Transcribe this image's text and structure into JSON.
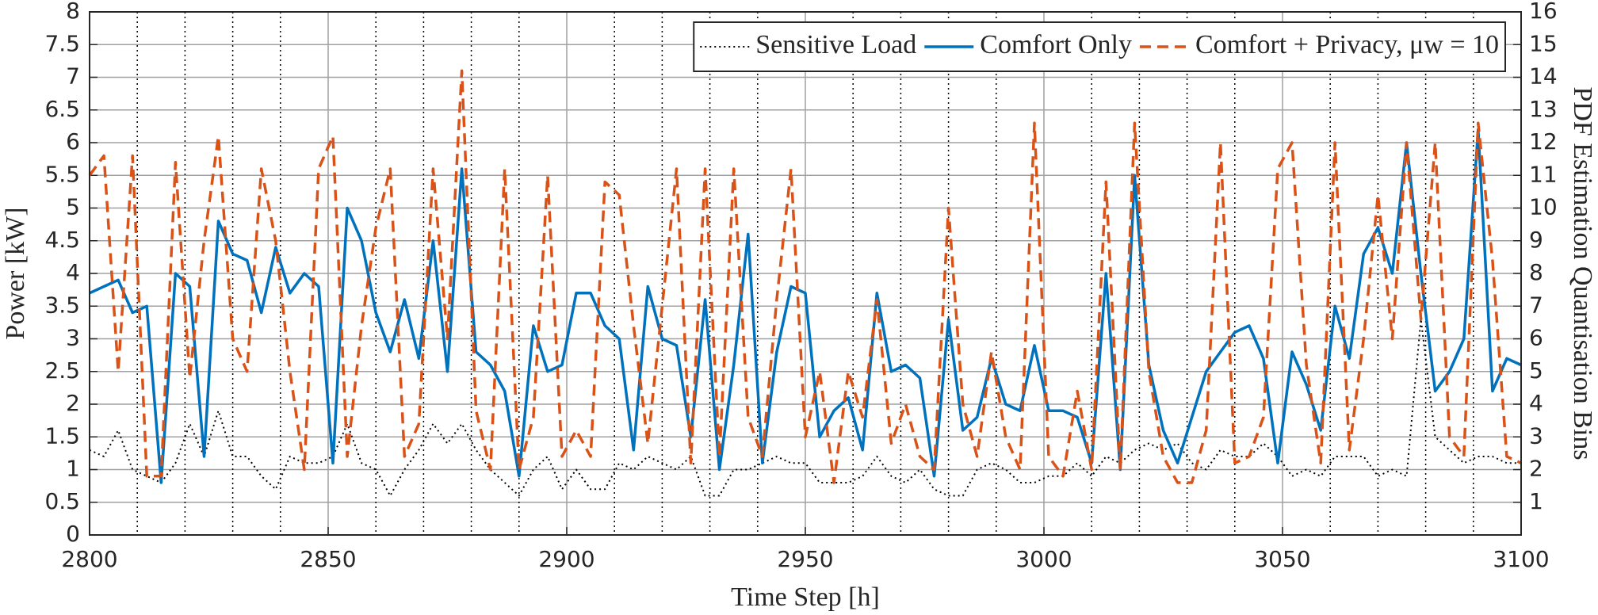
{
  "chart_data": {
    "type": "line",
    "xlabel": "Time Step [h]",
    "ylabel": "Power [kW]",
    "y2label": "PDF Estimation Quantisation Bins",
    "x": [
      2800,
      2803,
      2806,
      2809,
      2812,
      2815,
      2818,
      2821,
      2824,
      2827,
      2830,
      2833,
      2836,
      2839,
      2842,
      2845,
      2848,
      2851,
      2854,
      2857,
      2860,
      2863,
      2866,
      2869,
      2872,
      2875,
      2878,
      2881,
      2884,
      2887,
      2890,
      2893,
      2896,
      2899,
      2902,
      2905,
      2908,
      2911,
      2914,
      2917,
      2920,
      2923,
      2926,
      2929,
      2932,
      2935,
      2938,
      2941,
      2944,
      2947,
      2950,
      2953,
      2956,
      2959,
      2962,
      2965,
      2968,
      2971,
      2974,
      2977,
      2980,
      2983,
      2986,
      2989,
      2992,
      2995,
      2998,
      3001,
      3004,
      3007,
      3010,
      3013,
      3016,
      3019,
      3022,
      3025,
      3028,
      3031,
      3034,
      3037,
      3040,
      3043,
      3046,
      3049,
      3052,
      3055,
      3058,
      3061,
      3064,
      3067,
      3070,
      3073,
      3076,
      3079,
      3082,
      3085,
      3088,
      3091,
      3094,
      3097,
      3100
    ],
    "series": [
      {
        "name": "Sensitive Load",
        "color": "#000000",
        "dash": "dotted",
        "values": [
          1.3,
          1.2,
          1.6,
          1.0,
          0.9,
          0.8,
          1.1,
          1.7,
          1.2,
          1.9,
          1.2,
          1.2,
          0.9,
          0.7,
          1.2,
          1.1,
          1.1,
          1.2,
          1.7,
          1.1,
          1.0,
          0.6,
          1.0,
          1.3,
          1.7,
          1.4,
          1.7,
          1.3,
          1.0,
          0.8,
          0.6,
          1.0,
          1.2,
          0.7,
          1.0,
          0.7,
          0.7,
          1.1,
          1.0,
          1.2,
          1.1,
          1.0,
          1.2,
          0.6,
          0.6,
          1.0,
          1.0,
          1.1,
          1.2,
          1.1,
          1.1,
          0.8,
          0.8,
          0.8,
          0.9,
          1.2,
          0.9,
          0.8,
          1.0,
          0.7,
          0.6,
          0.6,
          1.0,
          1.1,
          1.0,
          0.8,
          0.8,
          0.9,
          0.9,
          1.1,
          0.9,
          1.2,
          1.1,
          1.3,
          1.4,
          1.3,
          1.4,
          1.1,
          1.0,
          1.3,
          1.2,
          1.2,
          1.4,
          1.2,
          0.9,
          1.0,
          0.9,
          1.2,
          1.2,
          1.2,
          0.9,
          1.0,
          0.9,
          3.3,
          1.5,
          1.3,
          1.1,
          1.2,
          1.2,
          1.1,
          1.1
        ]
      },
      {
        "name": "Comfort Only",
        "color": "#0072bd",
        "dash": "solid",
        "values": [
          3.7,
          3.8,
          3.9,
          3.4,
          3.5,
          0.8,
          4.0,
          3.8,
          1.2,
          4.8,
          4.3,
          4.2,
          3.4,
          4.4,
          3.7,
          4.0,
          3.8,
          1.1,
          5.0,
          4.5,
          3.4,
          2.8,
          3.6,
          2.7,
          4.5,
          2.5,
          5.6,
          2.8,
          2.6,
          2.2,
          0.9,
          3.2,
          2.5,
          2.6,
          3.7,
          3.7,
          3.2,
          3.0,
          1.3,
          3.8,
          3.0,
          2.9,
          1.5,
          3.6,
          1.0,
          2.6,
          4.6,
          1.1,
          2.8,
          3.8,
          3.7,
          1.5,
          1.9,
          2.1,
          1.3,
          3.7,
          2.5,
          2.6,
          2.4,
          0.9,
          3.3,
          1.6,
          1.8,
          2.7,
          2.0,
          1.9,
          2.9,
          1.9,
          1.9,
          1.8,
          1.1,
          4.0,
          1.0,
          5.5,
          2.6,
          1.6,
          1.1,
          1.8,
          2.5,
          2.8,
          3.1,
          3.2,
          2.7,
          1.1,
          2.8,
          2.3,
          1.6,
          3.5,
          2.7,
          4.3,
          4.7,
          4.0,
          6.0,
          4.0,
          2.2,
          2.5,
          3.0,
          6.2,
          2.2,
          2.7,
          2.6
        ]
      },
      {
        "name": "Comfort + Privacy, μw = 10",
        "color": "#d95319",
        "dash": "dashed",
        "values": [
          5.5,
          5.8,
          2.5,
          5.8,
          0.9,
          0.9,
          5.7,
          2.4,
          4.5,
          6.1,
          3.0,
          2.5,
          5.6,
          4.5,
          2.5,
          1.0,
          5.6,
          6.1,
          1.2,
          3.2,
          4.7,
          5.6,
          1.2,
          1.7,
          5.6,
          3.0,
          7.1,
          1.9,
          1.0,
          5.6,
          1.0,
          1.8,
          5.5,
          1.2,
          1.6,
          1.2,
          5.4,
          5.2,
          3.2,
          1.4,
          3.5,
          5.6,
          1.1,
          5.6,
          1.2,
          5.6,
          1.8,
          1.2,
          3.6,
          5.6,
          1.5,
          2.5,
          0.8,
          2.5,
          1.8,
          3.6,
          1.4,
          2.0,
          1.2,
          1.0,
          5.0,
          2.0,
          1.2,
          2.8,
          1.5,
          1.0,
          6.3,
          1.2,
          0.9,
          2.2,
          1.0,
          5.4,
          1.0,
          6.3,
          2.5,
          1.2,
          0.8,
          0.8,
          1.6,
          6.0,
          1.1,
          1.2,
          1.8,
          5.6,
          6.0,
          2.6,
          1.1,
          6.0,
          1.3,
          3.0,
          5.2,
          3.0,
          6.0,
          3.3,
          6.0,
          1.5,
          1.2,
          6.3,
          4.2,
          1.2,
          1.1
        ]
      }
    ],
    "xlim": [
      2800,
      3100
    ],
    "xticks": [
      2800,
      2850,
      2900,
      2950,
      3000,
      3050,
      3100
    ],
    "xminorticks": [
      2810,
      2820,
      2830,
      2840,
      2860,
      2870,
      2880,
      2890,
      2910,
      2920,
      2930,
      2940,
      2960,
      2970,
      2980,
      2990,
      3010,
      3020,
      3030,
      3040,
      3060,
      3070,
      3080,
      3090
    ],
    "ylim": [
      0,
      8
    ],
    "yticks": [
      0,
      0.5,
      1,
      1.5,
      2,
      2.5,
      3,
      3.5,
      4,
      4.5,
      5,
      5.5,
      6,
      6.5,
      7,
      7.5,
      8
    ],
    "y2lim": [
      0,
      16
    ],
    "y2ticks": [
      1,
      2,
      3,
      4,
      5,
      6,
      7,
      8,
      9,
      10,
      11,
      12,
      13,
      14,
      15,
      16
    ],
    "grid": true,
    "legend": "top-right"
  }
}
